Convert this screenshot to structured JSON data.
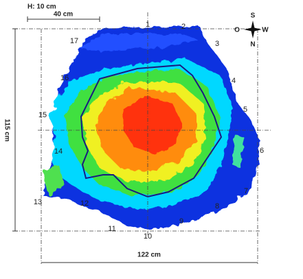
{
  "header": {
    "height_label": "H: 10 cm",
    "scale_label": "40 cm"
  },
  "dimensions": {
    "height": "115 cm",
    "width": "122 cm"
  },
  "compass": {
    "top": "S",
    "left": "O",
    "right": "W",
    "bottom": "N"
  },
  "points": [
    "1",
    "2",
    "3",
    "4",
    "5",
    "6",
    "7",
    "8",
    "9",
    "10",
    "11",
    "12",
    "13",
    "14",
    "15",
    "16",
    "17"
  ]
}
